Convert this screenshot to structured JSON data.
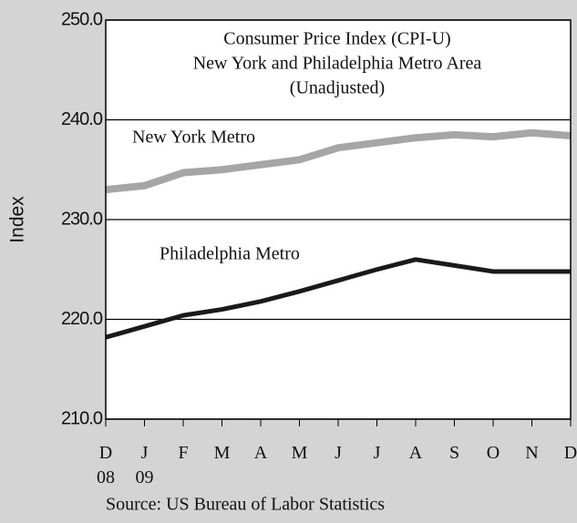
{
  "chart_data": {
    "type": "line",
    "title_lines": [
      "Consumer Price Index (CPI-U)",
      "New York and Philadelphia Metro Area",
      "(Unadjusted)"
    ],
    "y_label": "Index",
    "source": "Source: US Bureau of Labor Statistics",
    "categories": [
      "D\n08",
      "J\n09",
      "F",
      "M",
      "A",
      "M",
      "J",
      "J",
      "A",
      "S",
      "O",
      "N",
      "D"
    ],
    "series": [
      {
        "name": "New York Metro",
        "color": "#a6a6a6",
        "values": [
          233.0,
          233.4,
          234.7,
          235.0,
          235.5,
          236.0,
          237.2,
          237.7,
          238.2,
          238.5,
          238.3,
          238.7,
          238.4
        ]
      },
      {
        "name": "Philadelphia Metro",
        "color": "#1a1a1a",
        "values": [
          218.2,
          219.3,
          220.4,
          221.0,
          221.8,
          222.8,
          223.9,
          225.0,
          226.0,
          225.4,
          224.8,
          224.8,
          224.8
        ]
      }
    ],
    "ylim": [
      210,
      250
    ],
    "yticks": [
      {
        "value": 210,
        "label": "210.0"
      },
      {
        "value": 220,
        "label": "220.0"
      },
      {
        "value": 230,
        "label": "230.0"
      },
      {
        "value": 240,
        "label": "240.0"
      },
      {
        "value": 250,
        "label": "250.0"
      }
    ],
    "grid": true
  }
}
